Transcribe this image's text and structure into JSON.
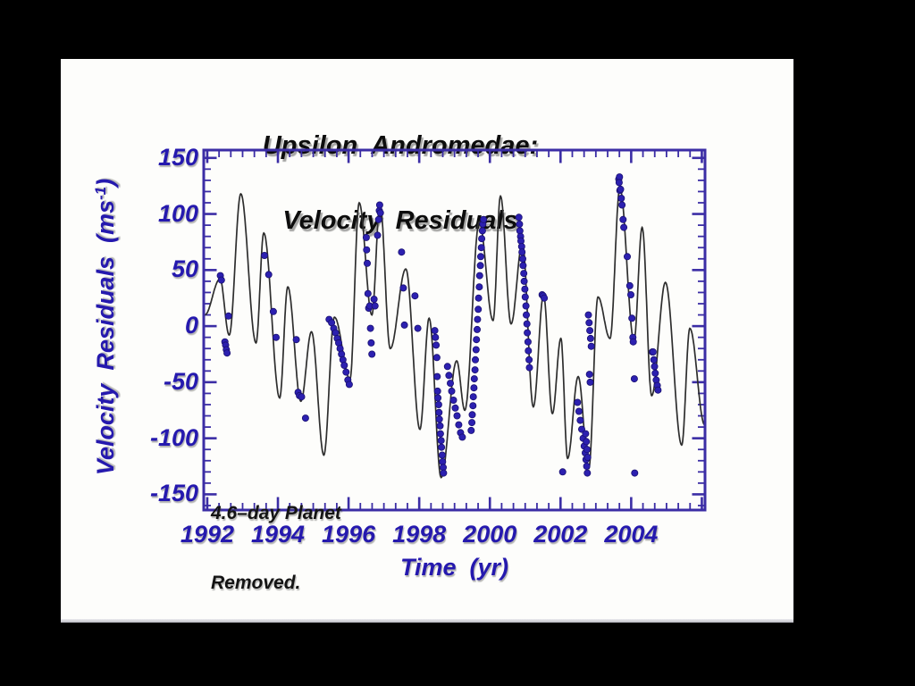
{
  "colors": {
    "page_bg": "#000000",
    "slide_bg": "#fdfdfb",
    "axis": "#3b2da5",
    "tick_label": "#2519ae",
    "curve": "#2e2e2e",
    "point": "#2c20b0",
    "point_edge": "#191070",
    "title_text": "#0d0d0d"
  },
  "title": {
    "line1": "Upsilon  Andromedae:",
    "line2": "Velocity  Residuals"
  },
  "annotation": {
    "line1": "4.6–day Planet",
    "line2": "Removed."
  },
  "axes": {
    "x_label": "Time  (yr)",
    "y_label_pre": "Velocity  Residuals  (ms",
    "y_label_sup": "-1",
    "y_label_post": ")"
  },
  "chart_data": {
    "type": "scatter",
    "title": "Upsilon Andromedae: Velocity Residuals",
    "xlabel": "Time (yr)",
    "ylabel": "Velocity Residuals (ms^-1)",
    "annotation": "4.6-day Planet Removed.",
    "x_range": [
      1991.9,
      2006.09
    ],
    "y_range": [
      -164,
      157
    ],
    "x_ticks": [
      1992,
      1994,
      1996,
      1998,
      2000,
      2002,
      2004
    ],
    "y_ticks": [
      150,
      100,
      50,
      0,
      -50,
      -100,
      -150
    ],
    "x_minor_per_major": 6,
    "y_minor_step": 10,
    "grid": false,
    "legend": false,
    "series": [
      {
        "name": "model-curve",
        "type": "line",
        "interpolation": "half-cosine-between-extrema",
        "points": [
          [
            1991.93,
            10
          ],
          [
            1992.36,
            42
          ],
          [
            1992.62,
            -8
          ],
          [
            1992.95,
            118
          ],
          [
            1993.38,
            -15
          ],
          [
            1993.6,
            83
          ],
          [
            1994.05,
            -64
          ],
          [
            1994.28,
            35
          ],
          [
            1994.65,
            -67
          ],
          [
            1994.95,
            -5
          ],
          [
            1995.3,
            -115
          ],
          [
            1995.6,
            8
          ],
          [
            1996.04,
            -47
          ],
          [
            1996.3,
            110
          ],
          [
            1996.66,
            10
          ],
          [
            1996.89,
            109
          ],
          [
            1997.18,
            -20
          ],
          [
            1997.62,
            51
          ],
          [
            1998.02,
            -92
          ],
          [
            1998.28,
            7
          ],
          [
            1998.62,
            -135
          ],
          [
            1999.06,
            -31
          ],
          [
            1999.29,
            -75
          ],
          [
            1999.7,
            93
          ],
          [
            2000.09,
            5
          ],
          [
            2000.3,
            116
          ],
          [
            2000.6,
            2
          ],
          [
            2000.92,
            74
          ],
          [
            2001.23,
            -72
          ],
          [
            2001.52,
            28
          ],
          [
            2001.77,
            -78
          ],
          [
            2002.01,
            -11
          ],
          [
            2002.2,
            -118
          ],
          [
            2002.5,
            -45
          ],
          [
            2002.8,
            -127
          ],
          [
            2003.06,
            26
          ],
          [
            2003.4,
            -11
          ],
          [
            2003.68,
            123
          ],
          [
            2004.08,
            -13
          ],
          [
            2004.31,
            88
          ],
          [
            2004.58,
            -62
          ],
          [
            2004.97,
            39
          ],
          [
            2005.43,
            -106
          ],
          [
            2005.66,
            -2
          ],
          [
            2006.08,
            -88
          ]
        ]
      },
      {
        "name": "observed-residuals",
        "type": "scatter",
        "points": [
          [
            1992.37,
            45
          ],
          [
            1992.4,
            41
          ],
          [
            1992.5,
            -14
          ],
          [
            1992.52,
            -17
          ],
          [
            1992.54,
            -21
          ],
          [
            1992.56,
            -24
          ],
          [
            1992.6,
            9
          ],
          [
            1993.62,
            63
          ],
          [
            1993.74,
            46
          ],
          [
            1993.87,
            13
          ],
          [
            1993.95,
            -10
          ],
          [
            1994.52,
            -12
          ],
          [
            1994.57,
            -59
          ],
          [
            1994.61,
            -62
          ],
          [
            1994.67,
            -63
          ],
          [
            1994.78,
            -82
          ],
          [
            1995.45,
            6
          ],
          [
            1995.52,
            3
          ],
          [
            1995.58,
            -2
          ],
          [
            1995.63,
            -6
          ],
          [
            1995.68,
            -11
          ],
          [
            1995.72,
            -15
          ],
          [
            1995.76,
            -20
          ],
          [
            1995.8,
            -25
          ],
          [
            1995.84,
            -30
          ],
          [
            1995.88,
            -35
          ],
          [
            1995.93,
            -41
          ],
          [
            1995.98,
            -48
          ],
          [
            1996.02,
            -52
          ],
          [
            1996.5,
            79
          ],
          [
            1996.51,
            68
          ],
          [
            1996.53,
            56
          ],
          [
            1996.55,
            29
          ],
          [
            1996.57,
            16
          ],
          [
            1996.6,
            18
          ],
          [
            1996.62,
            -2
          ],
          [
            1996.64,
            -15
          ],
          [
            1996.66,
            -25
          ],
          [
            1996.72,
            24
          ],
          [
            1996.75,
            18
          ],
          [
            1996.82,
            81
          ],
          [
            1996.85,
            95
          ],
          [
            1996.87,
            103
          ],
          [
            1996.88,
            108
          ],
          [
            1996.9,
            101
          ],
          [
            1997.5,
            66
          ],
          [
            1997.55,
            34
          ],
          [
            1997.58,
            1
          ],
          [
            1997.88,
            27
          ],
          [
            1997.96,
            -2
          ],
          [
            1998.44,
            -4
          ],
          [
            1998.46,
            -10
          ],
          [
            1998.48,
            -17
          ],
          [
            1998.5,
            -28
          ],
          [
            1998.51,
            -45
          ],
          [
            1998.52,
            -58
          ],
          [
            1998.53,
            -64
          ],
          [
            1998.55,
            -70
          ],
          [
            1998.56,
            -77
          ],
          [
            1998.57,
            -83
          ],
          [
            1998.59,
            -89
          ],
          [
            1998.6,
            -96
          ],
          [
            1998.62,
            -102
          ],
          [
            1998.63,
            -108
          ],
          [
            1998.65,
            -115
          ],
          [
            1998.66,
            -121
          ],
          [
            1998.68,
            -126
          ],
          [
            1998.69,
            -131
          ],
          [
            1998.8,
            -36
          ],
          [
            1998.84,
            -44
          ],
          [
            1998.88,
            -51
          ],
          [
            1998.92,
            -58
          ],
          [
            1998.97,
            -66
          ],
          [
            1999.02,
            -73
          ],
          [
            1999.07,
            -80
          ],
          [
            1999.12,
            -88
          ],
          [
            1999.17,
            -95
          ],
          [
            1999.22,
            -99
          ],
          [
            1999.47,
            -93
          ],
          [
            1999.49,
            -86
          ],
          [
            1999.5,
            -79
          ],
          [
            1999.52,
            -71
          ],
          [
            1999.53,
            -63
          ],
          [
            1999.55,
            -55
          ],
          [
            1999.56,
            -47
          ],
          [
            1999.58,
            -39
          ],
          [
            1999.59,
            -30
          ],
          [
            1999.61,
            -21
          ],
          [
            1999.62,
            -12
          ],
          [
            1999.64,
            -3
          ],
          [
            1999.65,
            6
          ],
          [
            1999.67,
            15
          ],
          [
            1999.68,
            25
          ],
          [
            1999.7,
            35
          ],
          [
            1999.71,
            45
          ],
          [
            1999.73,
            54
          ],
          [
            1999.74,
            62
          ],
          [
            1999.76,
            70
          ],
          [
            1999.77,
            78
          ],
          [
            1999.79,
            85
          ],
          [
            1999.8,
            91
          ],
          [
            1999.82,
            95
          ],
          [
            2000.82,
            97
          ],
          [
            2000.84,
            91
          ],
          [
            2000.85,
            85
          ],
          [
            2000.87,
            80
          ],
          [
            2000.88,
            76
          ],
          [
            2000.9,
            71
          ],
          [
            2000.91,
            66
          ],
          [
            2000.93,
            60
          ],
          [
            2000.94,
            54
          ],
          [
            2000.96,
            47
          ],
          [
            2000.97,
            40
          ],
          [
            2000.99,
            33
          ],
          [
            2001.0,
            26
          ],
          [
            2001.02,
            18
          ],
          [
            2001.03,
            10
          ],
          [
            2001.05,
            2
          ],
          [
            2001.06,
            -6
          ],
          [
            2001.08,
            -14
          ],
          [
            2001.09,
            -22
          ],
          [
            2001.11,
            -30
          ],
          [
            2001.12,
            -37
          ],
          [
            2001.48,
            28
          ],
          [
            2001.51,
            27
          ],
          [
            2001.54,
            25
          ],
          [
            2002.06,
            -130
          ],
          [
            2002.48,
            -68
          ],
          [
            2002.52,
            -76
          ],
          [
            2002.56,
            -84
          ],
          [
            2002.6,
            -92
          ],
          [
            2002.64,
            -100
          ],
          [
            2002.67,
            -107
          ],
          [
            2002.7,
            -113
          ],
          [
            2002.72,
            -119
          ],
          [
            2002.74,
            -125
          ],
          [
            2002.76,
            -131
          ],
          [
            2002.71,
            -96
          ],
          [
            2002.73,
            -103
          ],
          [
            2002.75,
            -110
          ],
          [
            2002.77,
            -117
          ],
          [
            2002.79,
            10
          ],
          [
            2002.81,
            3
          ],
          [
            2002.83,
            -4
          ],
          [
            2002.85,
            -11
          ],
          [
            2002.87,
            -18
          ],
          [
            2002.82,
            -43
          ],
          [
            2002.84,
            -50
          ],
          [
            2003.65,
            131
          ],
          [
            2003.67,
            133
          ],
          [
            2003.66,
            128
          ],
          [
            2003.68,
            121
          ],
          [
            2003.7,
            122
          ],
          [
            2003.72,
            114
          ],
          [
            2003.74,
            108
          ],
          [
            2003.77,
            95
          ],
          [
            2003.79,
            88
          ],
          [
            2003.89,
            62
          ],
          [
            2003.96,
            36
          ],
          [
            2003.99,
            28
          ],
          [
            2004.02,
            7
          ],
          [
            2004.05,
            -10
          ],
          [
            2004.06,
            -14
          ],
          [
            2004.09,
            -47
          ],
          [
            2004.1,
            -131
          ],
          [
            2004.6,
            -23
          ],
          [
            2004.62,
            -23
          ],
          [
            2004.64,
            -30
          ],
          [
            2004.66,
            -36
          ],
          [
            2004.68,
            -42
          ],
          [
            2004.71,
            -48
          ],
          [
            2004.74,
            -53
          ],
          [
            2004.76,
            -57
          ]
        ]
      }
    ]
  }
}
